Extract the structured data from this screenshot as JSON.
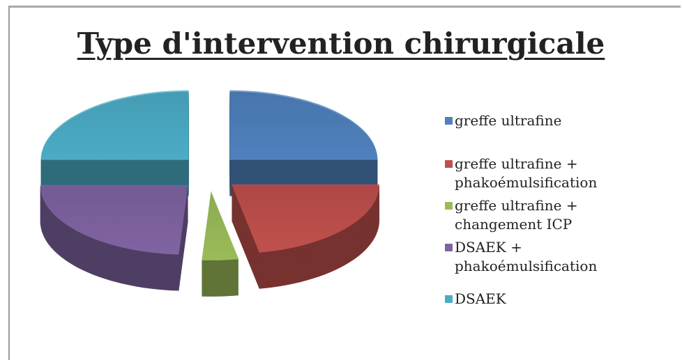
{
  "chart_data": {
    "type": "pie",
    "title": "Type d'intervention chirurgicale",
    "categories": [
      "greffe ultrafine",
      "greffe ultrafine + phakoémulsification",
      "greffe ultrafine + changement ICP",
      "DSAEK + phakoémulsification",
      "DSAEK"
    ],
    "values": [
      25,
      22,
      4,
      24,
      25
    ],
    "colors": [
      "#4f81bd",
      "#c0504d",
      "#9bbb59",
      "#8064a2",
      "#4bacc6"
    ],
    "legend": "right"
  }
}
